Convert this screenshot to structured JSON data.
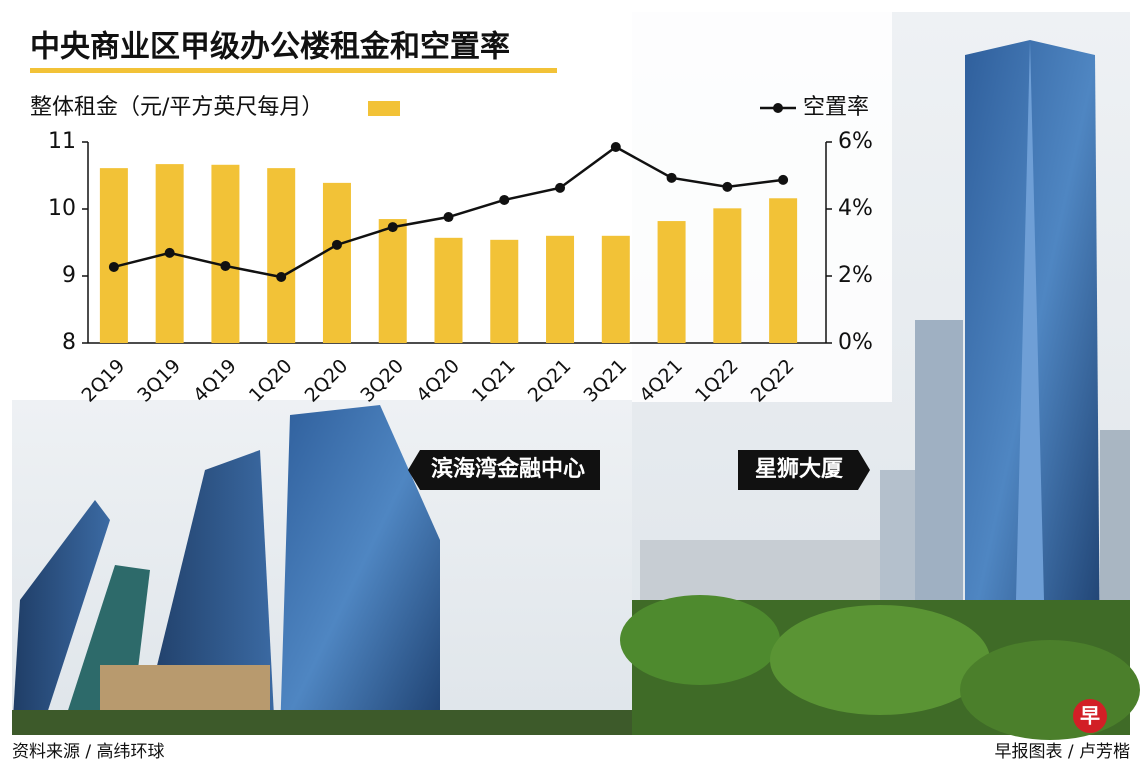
{
  "chart_data": {
    "type": "bar-line",
    "title": "中央商业区甲级办公楼租金和空置率",
    "categories": [
      "2Q19",
      "3Q19",
      "4Q19",
      "1Q20",
      "2Q20",
      "3Q20",
      "4Q20",
      "1Q21",
      "2Q21",
      "3Q21",
      "4Q21",
      "1Q22",
      "2Q22"
    ],
    "series": [
      {
        "name": "整体租金（元/平方英尺每月）",
        "color": "#f2c237",
        "type": "bar",
        "values": [
          10.61,
          10.67,
          10.66,
          10.61,
          10.39,
          9.85,
          9.57,
          9.54,
          9.6,
          9.6,
          9.82,
          10.01,
          10.16
        ]
      },
      {
        "name": "空置率",
        "color": "#111111",
        "type": "line",
        "axis": "y2",
        "values": [
          2.27,
          2.69,
          2.3,
          1.97,
          2.93,
          3.46,
          3.76,
          4.27,
          4.63,
          5.85,
          4.93,
          4.66,
          4.87
        ]
      }
    ],
    "ylim": [
      8,
      11
    ],
    "yticks": [
      8,
      9,
      10,
      11
    ],
    "y2lim": [
      0,
      6
    ],
    "y2ticks": [
      {
        "value": 0,
        "label": "0%"
      },
      {
        "value": 2,
        "label": "2%"
      },
      {
        "value": 4,
        "label": "4%"
      },
      {
        "value": 6,
        "label": "6%"
      }
    ],
    "annotations": [
      "滨海湾金融中心",
      "星狮大厦"
    ],
    "source": "资料来源 / 高纬环球",
    "credit": "早报图表 / 卢芳楷",
    "logo": "早"
  }
}
